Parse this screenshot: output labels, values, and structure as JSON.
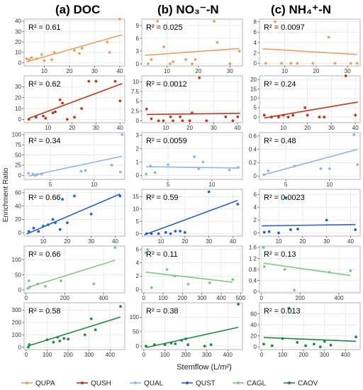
{
  "column_titles": [
    "(a) DOC",
    "(b) NO₃⁻-N",
    "(c) NH₄⁺-N"
  ],
  "y_axis_label": "Enrichment Ratio",
  "x_axis_label": "Stemflow (L/m²)",
  "legend": [
    {
      "name": "QUPA",
      "color": "#E8A060"
    },
    {
      "name": "QUSH",
      "color": "#C0381C"
    },
    {
      "name": "QUAL",
      "color": "#8FB8E8"
    },
    {
      "name": "QUST",
      "color": "#2A62C4"
    },
    {
      "name": "CAGL",
      "color": "#80C880"
    },
    {
      "name": "CAOV",
      "color": "#1E8A40"
    }
  ],
  "chart_data": [
    {
      "type": "scatter",
      "row": 1,
      "col": 1,
      "series": "QUPA",
      "color": "#E8A060",
      "r2": "R² = 0.61",
      "xlim": [
        2,
        42
      ],
      "ylim": [
        -3,
        42
      ],
      "xticks": [
        10,
        20,
        30,
        40
      ],
      "yticks": [
        0,
        10,
        20,
        30,
        40
      ],
      "points": [
        [
          3,
          4
        ],
        [
          4,
          3
        ],
        [
          5,
          5
        ],
        [
          7,
          4
        ],
        [
          9,
          8
        ],
        [
          10,
          2
        ],
        [
          13,
          3
        ],
        [
          14,
          10
        ],
        [
          22,
          12
        ],
        [
          24,
          9
        ],
        [
          25,
          14
        ],
        [
          35,
          20
        ],
        [
          36,
          10
        ],
        [
          40,
          42
        ]
      ],
      "fit": [
        [
          3,
          1
        ],
        [
          41,
          27
        ]
      ]
    },
    {
      "type": "scatter",
      "row": 1,
      "col": 2,
      "series": "QUPA",
      "color": "#E8A060",
      "r2": "R² = 0.025",
      "xlim": [
        2,
        34
      ],
      "ylim": [
        -0.5,
        10.5
      ],
      "xticks": [
        10,
        20,
        30
      ],
      "yticks": [
        0,
        3,
        6,
        9
      ],
      "points": [
        [
          4,
          0
        ],
        [
          5,
          1
        ],
        [
          7,
          10
        ],
        [
          9,
          4
        ],
        [
          11,
          0
        ],
        [
          12,
          0.5
        ],
        [
          16,
          1
        ],
        [
          18,
          0
        ],
        [
          19,
          1
        ],
        [
          25,
          10
        ],
        [
          26,
          5
        ],
        [
          30,
          0
        ],
        [
          33,
          3
        ]
      ],
      "fit": [
        [
          3,
          2
        ],
        [
          33,
          3.6
        ]
      ]
    },
    {
      "type": "scatter",
      "row": 1,
      "col": 3,
      "series": "QUPA",
      "color": "#E8A060",
      "r2": "R² = 0.0097",
      "xlim": [
        2,
        34
      ],
      "ylim": [
        -0.5,
        8.5
      ],
      "xticks": [
        10,
        20,
        30
      ],
      "yticks": [
        0,
        2,
        4,
        6,
        8
      ],
      "points": [
        [
          4,
          0
        ],
        [
          7,
          8
        ],
        [
          9,
          0
        ],
        [
          12,
          0
        ],
        [
          14,
          0
        ],
        [
          19,
          0
        ],
        [
          24,
          5
        ],
        [
          26,
          0
        ],
        [
          31,
          0
        ],
        [
          33,
          0
        ]
      ],
      "fit": [
        [
          3,
          2.8
        ],
        [
          33,
          1.7
        ]
      ]
    },
    {
      "type": "scatter",
      "row": 2,
      "col": 1,
      "series": "QUSH",
      "color": "#C0381C",
      "r2": "R² = 0.62",
      "xlim": [
        0,
        42
      ],
      "ylim": [
        -3,
        40
      ],
      "xticks": [
        10,
        20,
        30,
        40
      ],
      "yticks": [
        0,
        10,
        20,
        30
      ],
      "points": [
        [
          2,
          0
        ],
        [
          5,
          2
        ],
        [
          8,
          3
        ],
        [
          9,
          1
        ],
        [
          12,
          6
        ],
        [
          13,
          7
        ],
        [
          15,
          18
        ],
        [
          16,
          15
        ],
        [
          18,
          0
        ],
        [
          21,
          2
        ],
        [
          24,
          10
        ],
        [
          27,
          35
        ],
        [
          30,
          35
        ],
        [
          38,
          35
        ],
        [
          40,
          17
        ]
      ],
      "fit": [
        [
          2,
          1
        ],
        [
          41,
          33
        ]
      ]
    },
    {
      "type": "scatter",
      "row": 2,
      "col": 2,
      "series": "QUSH",
      "color": "#C0381C",
      "r2": "R² = 0.0012",
      "xlim": [
        0,
        42
      ],
      "ylim": [
        -0.5,
        11.5
      ],
      "xticks": [
        10,
        20,
        30,
        40
      ],
      "yticks": [
        0,
        2.5,
        5,
        7.5,
        10
      ],
      "points": [
        [
          2,
          3
        ],
        [
          4,
          0.5
        ],
        [
          7,
          0
        ],
        [
          9,
          0
        ],
        [
          12,
          1
        ],
        [
          13,
          0
        ],
        [
          16,
          1
        ],
        [
          17,
          0
        ],
        [
          20,
          0
        ],
        [
          21,
          2
        ],
        [
          24,
          11
        ],
        [
          27,
          0
        ],
        [
          35,
          1
        ],
        [
          38,
          0
        ],
        [
          40,
          1
        ]
      ],
      "fit": [
        [
          2,
          1.6
        ],
        [
          41,
          1.9
        ]
      ]
    },
    {
      "type": "scatter",
      "row": 2,
      "col": 3,
      "series": "QUSH",
      "color": "#C0381C",
      "r2": "R² = 0.24",
      "xlim": [
        0,
        42
      ],
      "ylim": [
        -3,
        22
      ],
      "xticks": [
        10,
        20,
        30,
        40
      ],
      "yticks": [
        0,
        5,
        10,
        15,
        20
      ],
      "points": [
        [
          2,
          1
        ],
        [
          5,
          0
        ],
        [
          8,
          0
        ],
        [
          10,
          1
        ],
        [
          12,
          0
        ],
        [
          14,
          1
        ],
        [
          19,
          5
        ],
        [
          20,
          1
        ],
        [
          25,
          0
        ],
        [
          27,
          0
        ],
        [
          36,
          22
        ],
        [
          40,
          1
        ]
      ],
      "fit": [
        [
          2,
          -0.5
        ],
        [
          41,
          8
        ]
      ]
    },
    {
      "type": "scatter",
      "row": 3,
      "col": 1,
      "series": "QUAL",
      "color": "#8FB8E8",
      "r2": "R² = 0.34",
      "xlim": [
        2,
        13.5
      ],
      "ylim": [
        -10,
        105
      ],
      "xticks": [
        5,
        10
      ],
      "yticks": [
        0,
        25,
        50,
        75,
        100
      ],
      "points": [
        [
          2.5,
          5
        ],
        [
          3,
          3
        ],
        [
          3.3,
          0
        ],
        [
          3.5,
          2
        ],
        [
          4,
          3
        ],
        [
          8.5,
          10
        ],
        [
          9,
          12
        ],
        [
          12,
          25
        ],
        [
          13,
          8
        ],
        [
          13.2,
          100
        ]
      ],
      "fit": [
        [
          2.5,
          -2
        ],
        [
          13.2,
          47
        ]
      ]
    },
    {
      "type": "scatter",
      "row": 3,
      "col": 2,
      "series": "QUAL",
      "color": "#8FB8E8",
      "r2": "R² = 0.0059",
      "xlim": [
        2,
        13.5
      ],
      "ylim": [
        -0.3,
        3.2
      ],
      "xticks": [
        5,
        10
      ],
      "yticks": [
        0,
        1,
        2,
        3
      ],
      "points": [
        [
          2.5,
          0.1
        ],
        [
          3,
          0.7
        ],
        [
          3.5,
          0.2
        ],
        [
          5,
          0.8
        ],
        [
          8,
          1.4
        ],
        [
          8.5,
          0.5
        ],
        [
          9,
          1
        ],
        [
          12,
          0.4
        ],
        [
          13,
          0.6
        ]
      ],
      "fit": [
        [
          2.5,
          0.65
        ],
        [
          13.2,
          0.55
        ]
      ]
    },
    {
      "type": "scatter",
      "row": 3,
      "col": 3,
      "series": "QUAL",
      "color": "#8FB8E8",
      "r2": "R² = 0.48",
      "xlim": [
        2,
        13.5
      ],
      "ylim": [
        -0.05,
        0.65
      ],
      "xticks": [
        5,
        10
      ],
      "yticks": [
        0,
        0.2,
        0.4,
        0.6
      ],
      "points": [
        [
          2.5,
          0.02
        ],
        [
          3,
          0.08
        ],
        [
          6,
          0.15
        ],
        [
          9,
          0.11
        ],
        [
          10,
          0.11
        ],
        [
          12.8,
          0.62
        ],
        [
          13.2,
          0.17
        ]
      ],
      "fit": [
        [
          2.5,
          0.02
        ],
        [
          13.2,
          0.4
        ]
      ]
    },
    {
      "type": "scatter",
      "row": 4,
      "col": 1,
      "series": "QUST",
      "color": "#2A62C4",
      "r2": "R² = 0.66",
      "xlim": [
        2,
        44
      ],
      "ylim": [
        -5,
        65
      ],
      "xticks": [
        10,
        20,
        30,
        40
      ],
      "yticks": [
        0,
        20,
        40,
        60
      ],
      "points": [
        [
          4,
          2
        ],
        [
          6,
          7
        ],
        [
          8,
          2
        ],
        [
          10,
          10
        ],
        [
          12,
          12
        ],
        [
          14,
          20
        ],
        [
          15,
          15
        ],
        [
          17,
          5
        ],
        [
          18,
          50
        ],
        [
          20,
          15
        ],
        [
          23,
          55
        ],
        [
          30,
          28
        ],
        [
          42,
          55
        ]
      ],
      "fit": [
        [
          3,
          -2
        ],
        [
          42,
          58
        ]
      ]
    },
    {
      "type": "scatter",
      "row": 4,
      "col": 2,
      "series": "QUST",
      "color": "#2A62C4",
      "r2": "R² = 0.59",
      "xlim": [
        2,
        44
      ],
      "ylim": [
        -1,
        18
      ],
      "xticks": [
        10,
        20,
        30,
        40
      ],
      "yticks": [
        0,
        5,
        10,
        15
      ],
      "points": [
        [
          4,
          0
        ],
        [
          6,
          0
        ],
        [
          9,
          0
        ],
        [
          12,
          0.5
        ],
        [
          14,
          0
        ],
        [
          16,
          1
        ],
        [
          18,
          1
        ],
        [
          20,
          0.5
        ],
        [
          30,
          17
        ],
        [
          42,
          12
        ]
      ],
      "fit": [
        [
          3,
          -0.5
        ],
        [
          42,
          13.5
        ]
      ]
    },
    {
      "type": "scatter",
      "row": 4,
      "col": 3,
      "series": "QUST",
      "color": "#2A62C4",
      "r2": "R² = 0.0023",
      "xlim": [
        2,
        44
      ],
      "ylim": [
        -0.5,
        6.8
      ],
      "xticks": [
        10,
        20,
        30,
        40
      ],
      "yticks": [
        0,
        2,
        4,
        6
      ],
      "points": [
        [
          4,
          0.1
        ],
        [
          6,
          0.2
        ],
        [
          10,
          0
        ],
        [
          13,
          5.5
        ],
        [
          15,
          0.5
        ],
        [
          18,
          0.6
        ],
        [
          30,
          2
        ],
        [
          42,
          0.5
        ]
      ],
      "fit": [
        [
          3,
          1.1
        ],
        [
          42,
          1.3
        ]
      ]
    },
    {
      "type": "scatter",
      "row": 5,
      "col": 1,
      "series": "CAGL",
      "color": "#80C880",
      "r2": "R² = 0.66",
      "xlim": [
        -10,
        510
      ],
      "ylim": [
        -10,
        145
      ],
      "xticks": [
        0,
        200,
        400
      ],
      "yticks": [
        0,
        50,
        100
      ],
      "points": [
        [
          10,
          5
        ],
        [
          15,
          30
        ],
        [
          20,
          10
        ],
        [
          60,
          20
        ],
        [
          100,
          12
        ],
        [
          180,
          30
        ],
        [
          350,
          20
        ],
        [
          460,
          140
        ]
      ],
      "fit": [
        [
          10,
          8
        ],
        [
          460,
          98
        ]
      ]
    },
    {
      "type": "scatter",
      "row": 5,
      "col": 2,
      "series": "CAGL",
      "color": "#80C880",
      "r2": "R² = 0.11",
      "xlim": [
        -10,
        510
      ],
      "ylim": [
        -0.5,
        6.5
      ],
      "xticks": [
        0,
        100,
        200,
        300,
        400,
        500
      ],
      "yticks": [
        0,
        2,
        4,
        6
      ],
      "points": [
        [
          10,
          5.5
        ],
        [
          20,
          6
        ],
        [
          40,
          0.3
        ],
        [
          120,
          3
        ],
        [
          160,
          2
        ],
        [
          230,
          0.8
        ],
        [
          340,
          1
        ],
        [
          460,
          1.5
        ]
      ],
      "fit": [
        [
          10,
          2.6
        ],
        [
          460,
          1.1
        ]
      ]
    },
    {
      "type": "scatter",
      "row": 5,
      "col": 3,
      "series": "CAGL",
      "color": "#80C880",
      "r2": "R² = 0.13",
      "xlim": [
        -10,
        510
      ],
      "ylim": [
        -0.05,
        1.65
      ],
      "xticks": [
        0,
        200,
        400
      ],
      "yticks": [
        0,
        0.4,
        0.8,
        1.2,
        1.6
      ],
      "points": [
        [
          10,
          1.6
        ],
        [
          15,
          0.9
        ],
        [
          120,
          0.8
        ],
        [
          170,
          0.05
        ],
        [
          350,
          0.7
        ],
        [
          460,
          0.75
        ]
      ],
      "fit": [
        [
          10,
          1.03
        ],
        [
          460,
          0.58
        ]
      ]
    },
    {
      "type": "scatter",
      "row": 6,
      "col": 1,
      "series": "CAOV",
      "color": "#1E8A40",
      "r2": "R² = 0.58",
      "xlim": [
        -10,
        470
      ],
      "ylim": [
        -20,
        360
      ],
      "xticks": [
        0,
        100,
        200,
        300,
        400
      ],
      "yticks": [
        0,
        100,
        200,
        300
      ],
      "points": [
        [
          10,
          0
        ],
        [
          15,
          20
        ],
        [
          100,
          60
        ],
        [
          130,
          40
        ],
        [
          150,
          80
        ],
        [
          160,
          50
        ],
        [
          180,
          70
        ],
        [
          200,
          65
        ],
        [
          280,
          100
        ],
        [
          310,
          230
        ],
        [
          330,
          140
        ],
        [
          450,
          330
        ]
      ],
      "fit": [
        [
          10,
          10
        ],
        [
          450,
          245
        ]
      ]
    },
    {
      "type": "scatter",
      "row": 6,
      "col": 2,
      "series": "CAOV",
      "color": "#1E8A40",
      "r2": "R² = 0.38",
      "xlim": [
        -10,
        470
      ],
      "ylim": [
        -12,
        150
      ],
      "xticks": [
        0,
        100,
        200,
        300,
        400
      ],
      "yticks": [
        0,
        50,
        100
      ],
      "points": [
        [
          10,
          0
        ],
        [
          50,
          5
        ],
        [
          100,
          5
        ],
        [
          130,
          10
        ],
        [
          150,
          8
        ],
        [
          180,
          20
        ],
        [
          200,
          25
        ],
        [
          210,
          5
        ],
        [
          290,
          0
        ],
        [
          320,
          5
        ],
        [
          450,
          145
        ]
      ],
      "fit": [
        [
          10,
          -5
        ],
        [
          450,
          65
        ]
      ]
    },
    {
      "type": "scatter",
      "row": 6,
      "col": 3,
      "series": "CAOV",
      "color": "#1E8A40",
      "r2": "R² = 0.013",
      "xlim": [
        -10,
        470
      ],
      "ylim": [
        -5,
        80
      ],
      "xticks": [
        0,
        100,
        200,
        300,
        400
      ],
      "yticks": [
        0,
        20,
        40,
        60
      ],
      "points": [
        [
          10,
          5
        ],
        [
          50,
          2
        ],
        [
          100,
          15
        ],
        [
          130,
          70
        ],
        [
          170,
          8
        ],
        [
          210,
          2
        ],
        [
          250,
          5
        ],
        [
          280,
          0
        ],
        [
          300,
          10
        ],
        [
          330,
          3
        ],
        [
          450,
          18
        ]
      ],
      "fit": [
        [
          10,
          17
        ],
        [
          450,
          10
        ]
      ]
    }
  ]
}
